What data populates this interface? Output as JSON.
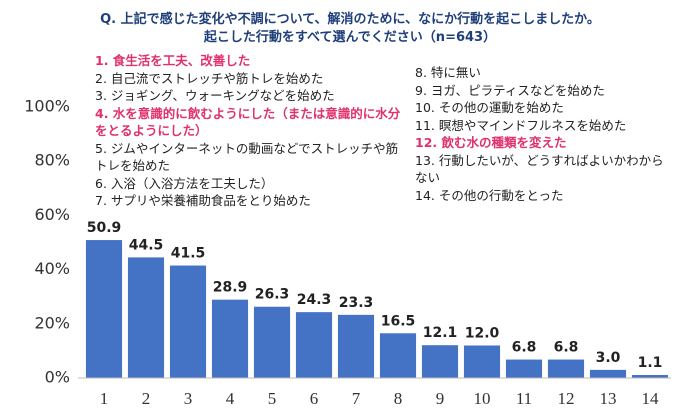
{
  "chart_data": {
    "type": "bar",
    "title": [
      "Q. 上記で感じた変化や不調について、解消のために、なにか行動を起こしましたか。",
      "起こした行動をすべて選んでください（n=643）"
    ],
    "categories": [
      "1",
      "2",
      "3",
      "4",
      "5",
      "6",
      "7",
      "8",
      "9",
      "10",
      "11",
      "12",
      "13",
      "14"
    ],
    "values": [
      50.9,
      44.5,
      41.5,
      28.9,
      26.3,
      24.3,
      23.3,
      16.5,
      12.1,
      12.0,
      6.8,
      6.8,
      3.0,
      1.1
    ],
    "value_labels": [
      "50.9",
      "44.5",
      "41.5",
      "28.9",
      "26.3",
      "24.3",
      "23.3",
      "16.5",
      "12.1",
      "12.0",
      "6.8",
      "6.8",
      "3.0",
      "1.1"
    ],
    "color": "#4472c4",
    "ylim": [
      0,
      100
    ],
    "yticks": [
      {
        "value": 0,
        "label": "0%"
      },
      {
        "value": 20,
        "label": "20%"
      },
      {
        "value": 40,
        "label": "40%"
      },
      {
        "value": 60,
        "label": "60%"
      },
      {
        "value": 80,
        "label": "80%"
      },
      {
        "value": 100,
        "label": "100%"
      }
    ],
    "grid": false,
    "highlight_color": "#e0306e",
    "annotation_columns": [
      [
        {
          "text": "1.  食生活を工夫、改善した",
          "highlight": true
        },
        {
          "text": "2.  自己流でストレッチや筋トレを始めた",
          "highlight": false
        },
        {
          "text": "3.  ジョギング、ウォーキングなどを始めた",
          "highlight": false
        },
        {
          "text": "4.  水を意識的に飲むようにした（または意識的に水分をとるようにした）",
          "highlight": true
        },
        {
          "text": "5.  ジムやインターネットの動画などでストレッチや筋トレを始めた",
          "highlight": false
        },
        {
          "text": "6.  入浴（入浴方法を工夫した）",
          "highlight": false
        },
        {
          "text": "7.  サプリや栄養補助食品をとり始めた",
          "highlight": false
        }
      ],
      [
        {
          "text": "8.  特に無い",
          "highlight": false
        },
        {
          "text": "9.  ヨガ、ピラティスなどを始めた",
          "highlight": false
        },
        {
          "text": "10.  その他の運動を始めた",
          "highlight": false
        },
        {
          "text": "11.  瞑想やマインドフルネスを始めた",
          "highlight": false
        },
        {
          "text": "12.  飲む水の種類を変えた",
          "highlight": true
        },
        {
          "text": "13.  行動したいが、どうすればよいかわからない",
          "highlight": false
        },
        {
          "text": "14.  その他の行動をとった",
          "highlight": false
        }
      ]
    ]
  }
}
